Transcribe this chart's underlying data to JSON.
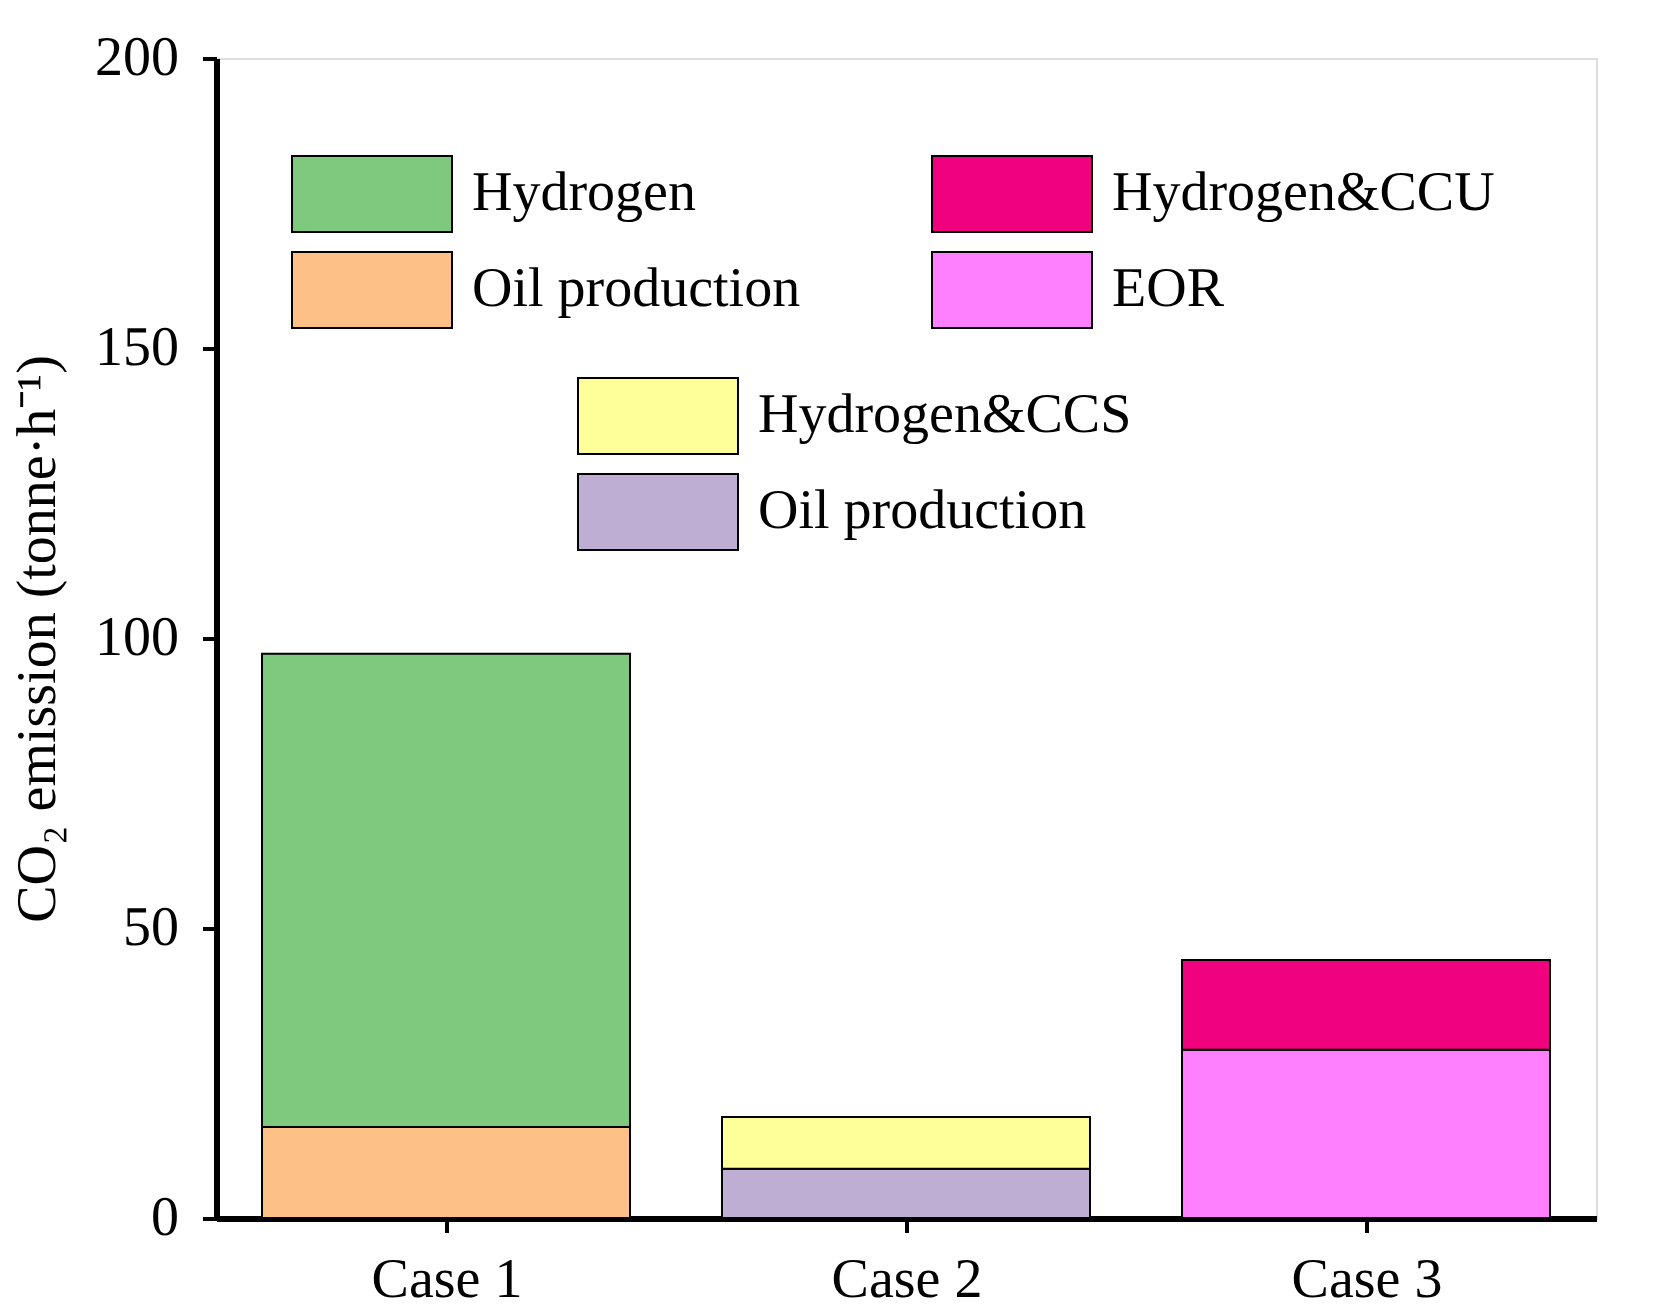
{
  "chart_data": {
    "type": "bar",
    "stacked": true,
    "ylabel": "CO₂ emission (tonne·h⁻¹)",
    "categories": [
      "Case 1",
      "Case 2",
      "Case 3"
    ],
    "series": [
      {
        "name": "Oil production",
        "color": "#fdc086",
        "values": [
          15.7,
          null,
          null
        ]
      },
      {
        "name": "Hydrogen",
        "color": "#7fc97f",
        "values": [
          81.6,
          null,
          null
        ]
      },
      {
        "name": "Oil production",
        "color": "#beaed4",
        "values": [
          null,
          8.5,
          null
        ]
      },
      {
        "name": "Hydrogen&CCS",
        "color": "#ffff99",
        "values": [
          null,
          8.9,
          null
        ]
      },
      {
        "name": "EOR",
        "color": "#ff80ff",
        "values": [
          null,
          null,
          29.0
        ]
      },
      {
        "name": "Hydrogen&CCU",
        "color": "#f0027f",
        "values": [
          null,
          null,
          15.5
        ]
      }
    ],
    "ylim": [
      0,
      200
    ],
    "yticks": [
      0,
      50,
      100,
      150,
      200
    ],
    "grid": false,
    "legend": "top"
  }
}
